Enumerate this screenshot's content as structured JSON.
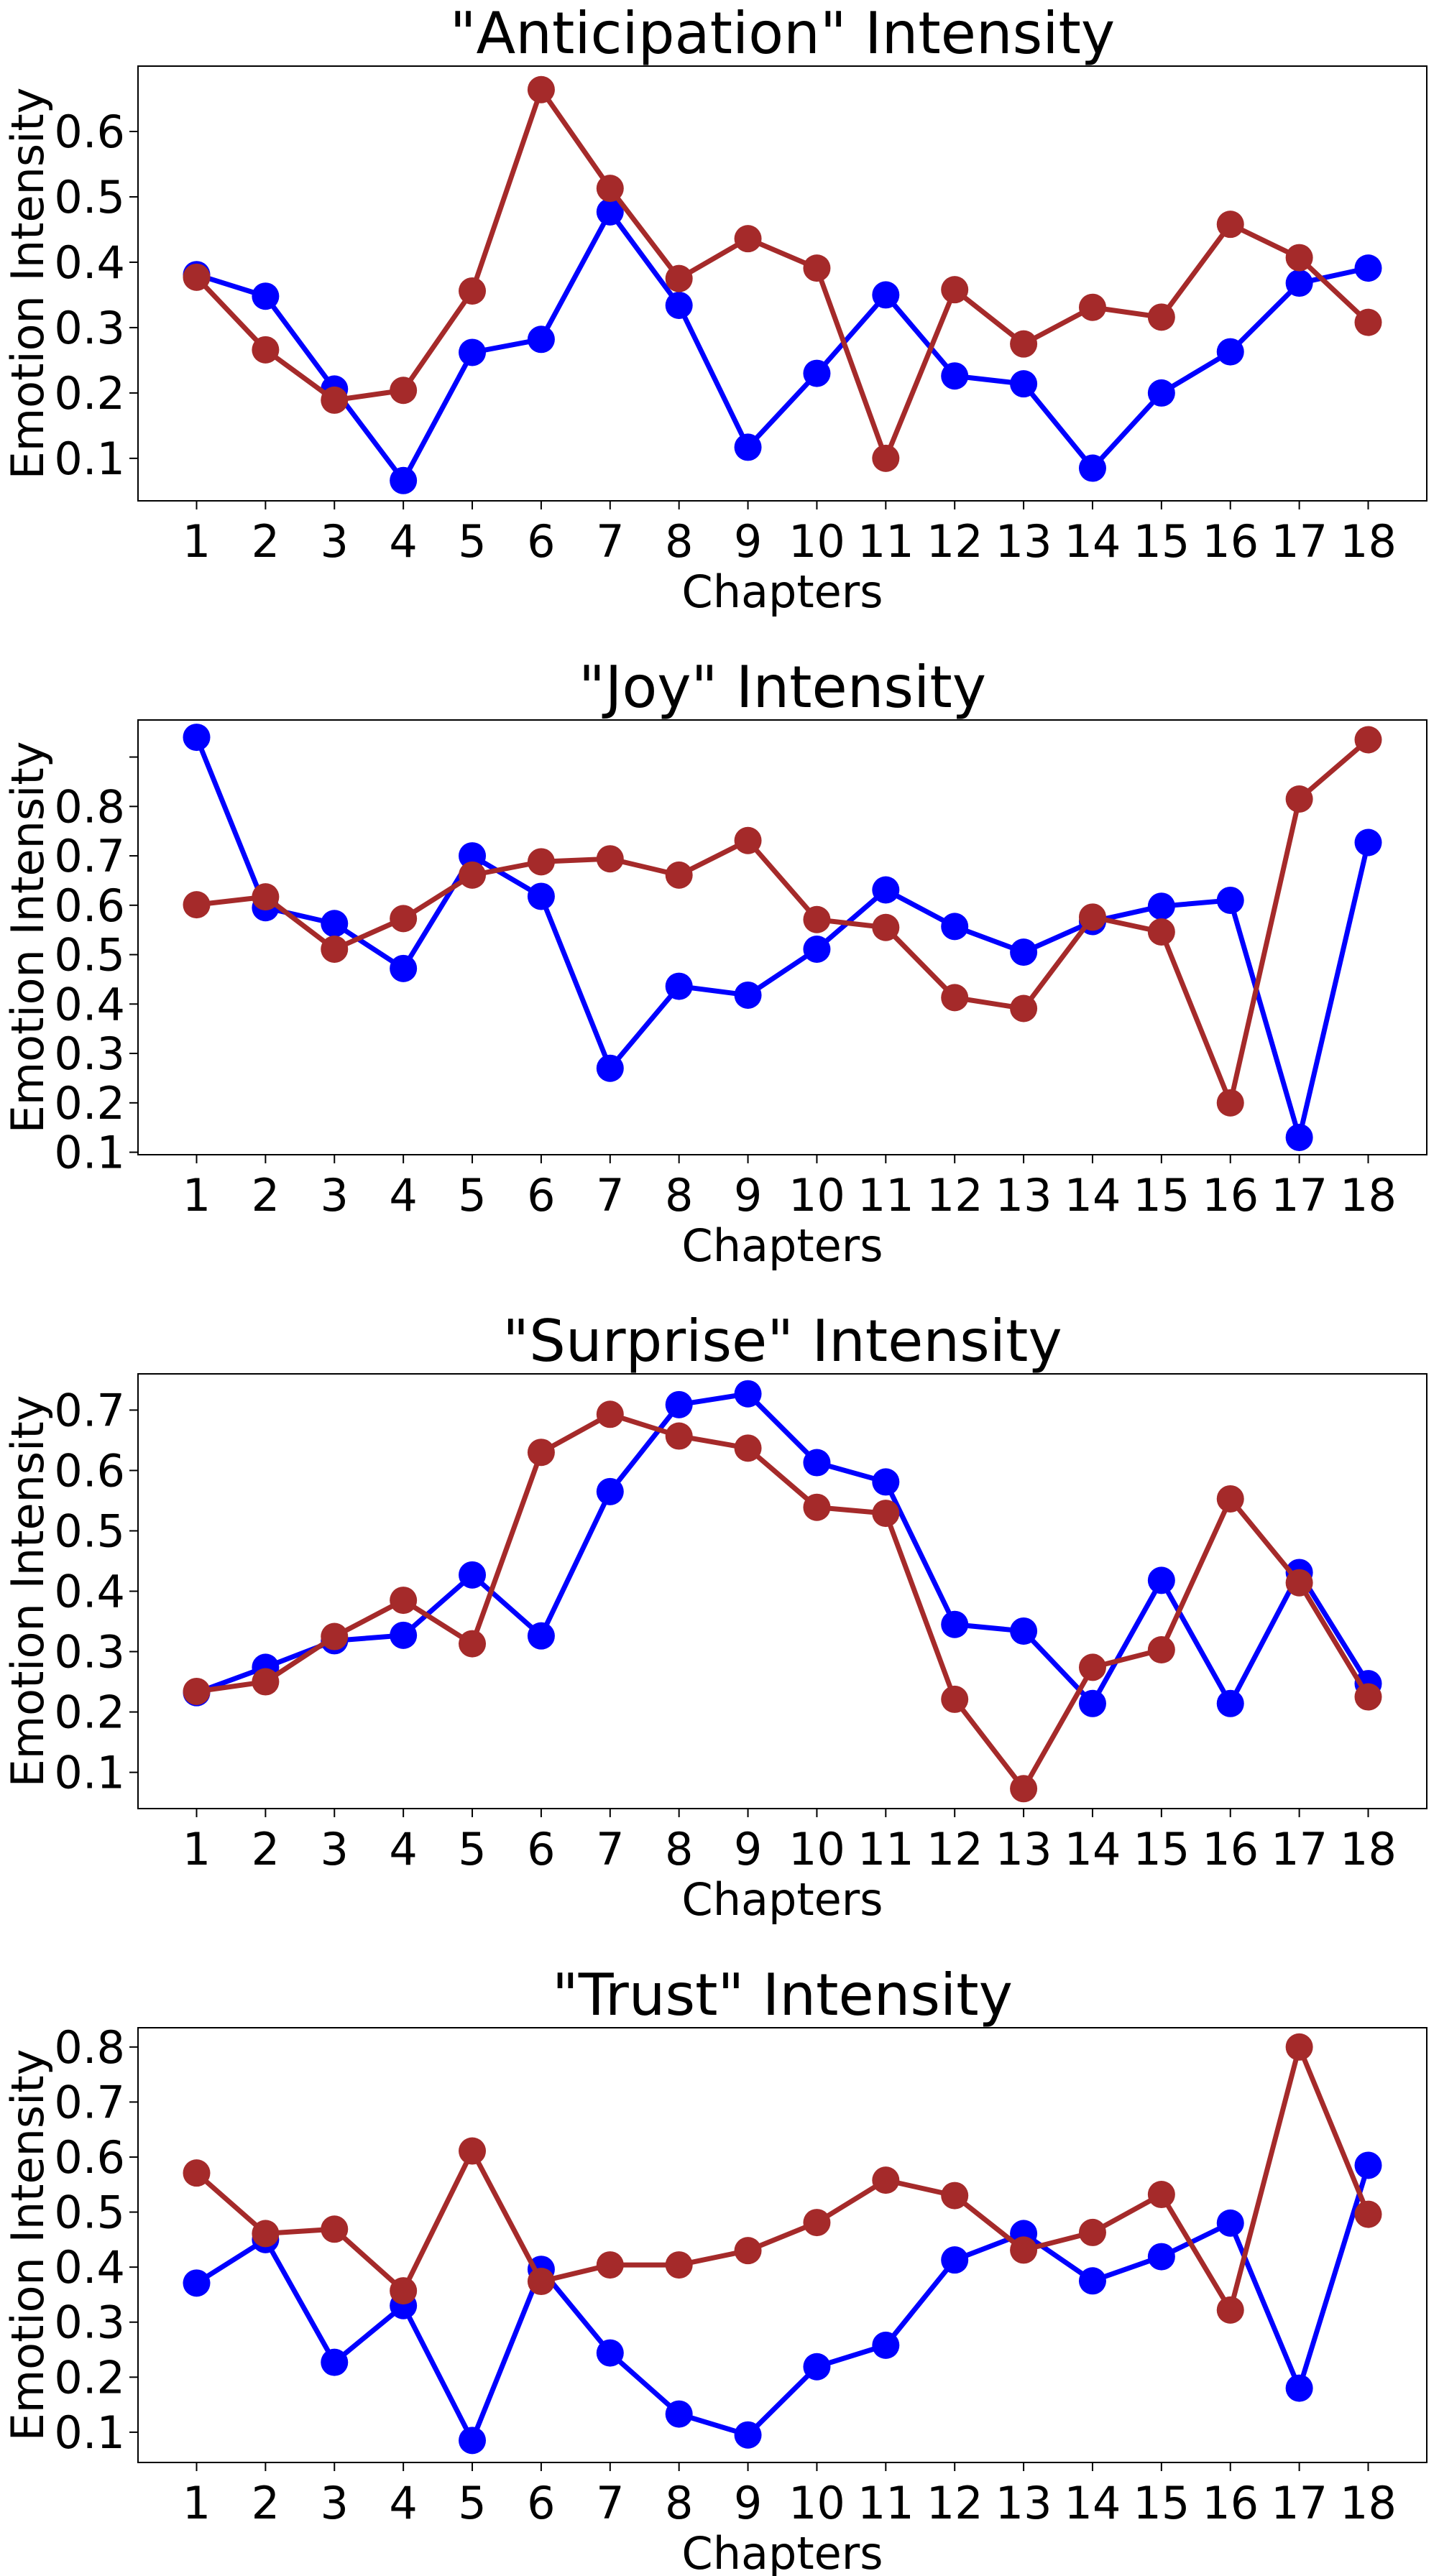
{
  "colors": {
    "series_a": "#0000ff",
    "series_b": "#a52a2a"
  },
  "chart_data": [
    {
      "type": "line",
      "title": "\"Anticipation\" Intensity",
      "xlabel": "Chapters",
      "ylabel": "Emotion Intensity",
      "x": [
        1,
        2,
        3,
        4,
        5,
        6,
        7,
        8,
        9,
        10,
        11,
        12,
        13,
        14,
        15,
        16,
        17,
        18
      ],
      "ylim": [
        0.035,
        0.7
      ],
      "yticks": [
        0.1,
        0.2,
        0.3,
        0.4,
        0.5,
        0.6
      ],
      "ytick_labels": [
        "0.1",
        "0.2",
        "0.3",
        "0.4",
        "0.5",
        "0.6"
      ],
      "series": [
        {
          "color": "#0000ff",
          "values": [
            0.381,
            0.348,
            0.206,
            0.066,
            0.262,
            0.282,
            0.477,
            0.334,
            0.117,
            0.23,
            0.35,
            0.226,
            0.214,
            0.085,
            0.2,
            0.263,
            0.368,
            0.391
          ]
        },
        {
          "color": "#a52a2a",
          "values": [
            0.377,
            0.266,
            0.189,
            0.204,
            0.356,
            0.664,
            0.513,
            0.375,
            0.436,
            0.391,
            0.1,
            0.358,
            0.275,
            0.331,
            0.316,
            0.458,
            0.407,
            0.308
          ]
        }
      ]
    },
    {
      "type": "line",
      "title": "\"Joy\" Intensity",
      "xlabel": "Chapters",
      "ylabel": "Emotion Intensity",
      "x": [
        1,
        2,
        3,
        4,
        5,
        6,
        7,
        8,
        9,
        10,
        11,
        12,
        13,
        14,
        15,
        16,
        17,
        18
      ],
      "ylim": [
        0.095,
        0.975
      ],
      "yticks": [
        0.1,
        0.2,
        0.3,
        0.4,
        0.5,
        0.6,
        0.7,
        0.8,
        0.9
      ],
      "ytick_labels": [
        "0.1",
        "0.2",
        "0.3",
        "0.4",
        "0.5",
        "0.6",
        "0.7",
        "0.8",
        ""
      ],
      "series": [
        {
          "color": "#0000ff",
          "values": [
            0.94,
            0.595,
            0.563,
            0.472,
            0.7,
            0.618,
            0.27,
            0.436,
            0.418,
            0.511,
            0.631,
            0.557,
            0.505,
            0.567,
            0.598,
            0.61,
            0.13,
            0.727
          ]
        },
        {
          "color": "#a52a2a",
          "values": [
            0.601,
            0.617,
            0.511,
            0.573,
            0.661,
            0.688,
            0.694,
            0.661,
            0.731,
            0.571,
            0.555,
            0.413,
            0.391,
            0.576,
            0.546,
            0.2,
            0.815,
            0.935
          ]
        }
      ]
    },
    {
      "type": "line",
      "title": "\"Surprise\" Intensity",
      "xlabel": "Chapters",
      "ylabel": "Emotion Intensity",
      "x": [
        1,
        2,
        3,
        4,
        5,
        6,
        7,
        8,
        9,
        10,
        11,
        12,
        13,
        14,
        15,
        16,
        17,
        18
      ],
      "ylim": [
        0.04,
        0.76
      ],
      "yticks": [
        0.1,
        0.2,
        0.3,
        0.4,
        0.5,
        0.6,
        0.7
      ],
      "ytick_labels": [
        "0.1",
        "0.2",
        "0.3",
        "0.4",
        "0.5",
        "0.6",
        "0.7"
      ],
      "series": [
        {
          "color": "#0000ff",
          "values": [
            0.232,
            0.274,
            0.318,
            0.327,
            0.427,
            0.326,
            0.565,
            0.709,
            0.727,
            0.613,
            0.581,
            0.345,
            0.334,
            0.214,
            0.418,
            0.214,
            0.431,
            0.247
          ]
        },
        {
          "color": "#a52a2a",
          "values": [
            0.234,
            0.25,
            0.325,
            0.385,
            0.313,
            0.63,
            0.693,
            0.657,
            0.637,
            0.539,
            0.529,
            0.221,
            0.073,
            0.274,
            0.303,
            0.553,
            0.414,
            0.225
          ]
        }
      ]
    },
    {
      "type": "line",
      "title": "\"Trust\" Intensity",
      "xlabel": "Chapters",
      "ylabel": "Emotion Intensity",
      "x": [
        1,
        2,
        3,
        4,
        5,
        6,
        7,
        8,
        9,
        10,
        11,
        12,
        13,
        14,
        15,
        16,
        17,
        18
      ],
      "ylim": [
        0.045,
        0.835
      ],
      "yticks": [
        0.1,
        0.2,
        0.3,
        0.4,
        0.5,
        0.6,
        0.7,
        0.8
      ],
      "ytick_labels": [
        "0.1",
        "0.2",
        "0.3",
        "0.4",
        "0.5",
        "0.6",
        "0.7",
        "0.8"
      ],
      "series": [
        {
          "color": "#0000ff",
          "values": [
            0.371,
            0.45,
            0.227,
            0.33,
            0.085,
            0.396,
            0.244,
            0.133,
            0.095,
            0.219,
            0.258,
            0.413,
            0.461,
            0.375,
            0.419,
            0.48,
            0.18,
            0.585
          ]
        },
        {
          "color": "#a52a2a",
          "values": [
            0.571,
            0.461,
            0.469,
            0.357,
            0.611,
            0.374,
            0.404,
            0.404,
            0.43,
            0.481,
            0.558,
            0.53,
            0.431,
            0.463,
            0.532,
            0.322,
            0.8,
            0.496
          ]
        }
      ]
    }
  ]
}
